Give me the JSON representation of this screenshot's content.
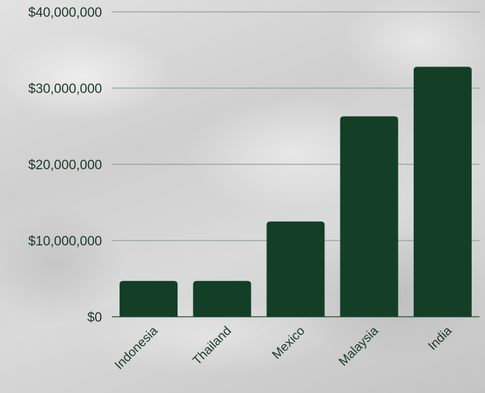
{
  "chart_data": {
    "type": "bar",
    "categories": [
      "Indonesia",
      "Thailand",
      "Mexico",
      "Malaysia",
      "India"
    ],
    "values": [
      4700000,
      4700000,
      12500000,
      26300000,
      32800000
    ],
    "yticks": [
      "$0",
      "$10,000,000",
      "$20,000,000",
      "$30,000,000",
      "$40,000,000"
    ],
    "ylim": [
      0,
      40000000
    ],
    "grid": true,
    "legend": "none",
    "bar_color": "#133f26"
  }
}
